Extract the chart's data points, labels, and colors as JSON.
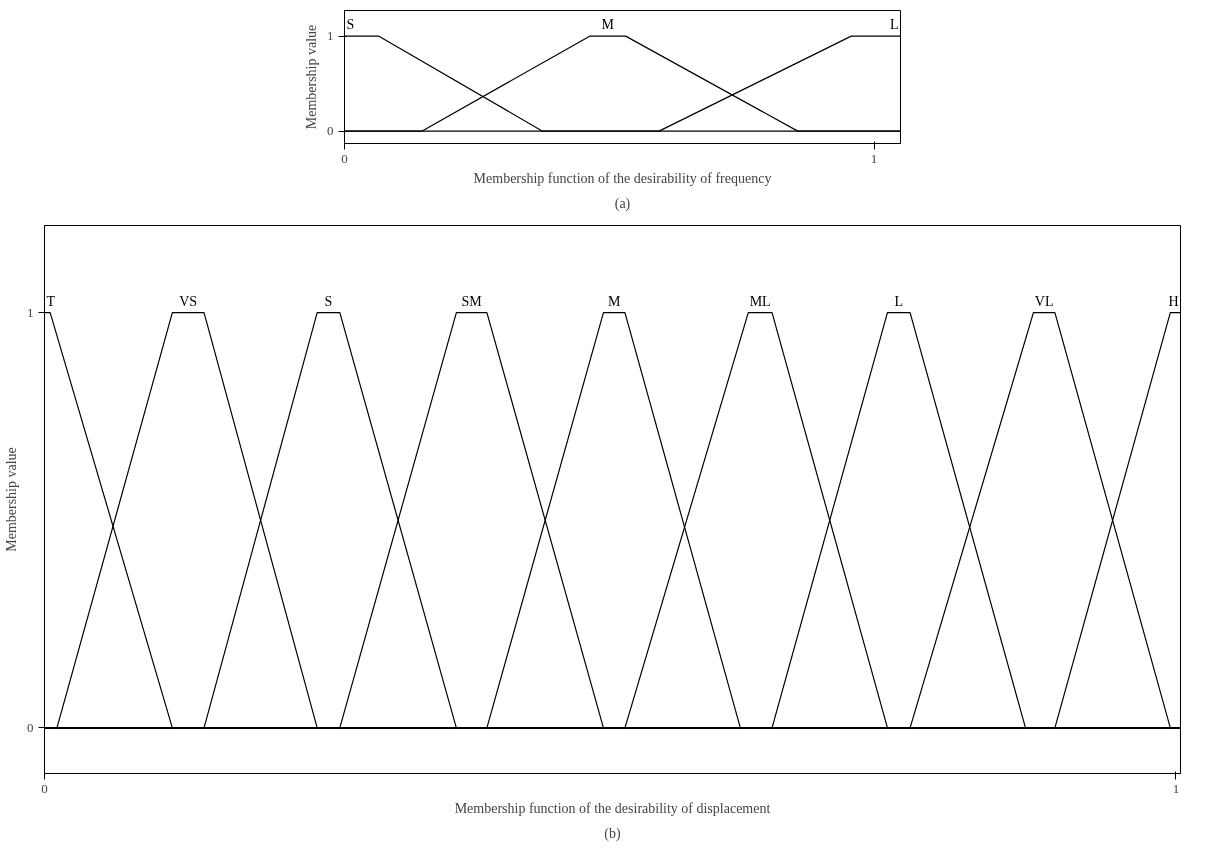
{
  "chart_data": [
    {
      "type": "line",
      "xlabel": "Membership function of the desirability of frequency",
      "ylabel": "Membership value",
      "xlim": [
        0,
        1.05
      ],
      "ylim": [
        -0.13,
        1.27
      ],
      "xticks": [
        0,
        1
      ],
      "yticks": [
        0,
        1
      ],
      "grid": false,
      "legend": false,
      "marker": "none",
      "line_style": "solid",
      "series": [
        {
          "name": "S",
          "color": "#000000",
          "x": [
            0,
            0.065,
            0.374,
            1.05
          ],
          "values": [
            1,
            1,
            0,
            0
          ]
        },
        {
          "name": "M",
          "color": "#000000",
          "x": [
            0,
            0.146,
            0.463,
            0.531,
            0.856,
            1.05
          ],
          "values": [
            0,
            0,
            1,
            1,
            0,
            0
          ]
        },
        {
          "name": "L",
          "color": "#000000",
          "x": [
            0,
            0.594,
            0.957,
            1.05
          ],
          "values": [
            0,
            0,
            1,
            1
          ]
        }
      ],
      "annotations": [
        "(a)"
      ]
    },
    {
      "type": "line",
      "xlabel": "Membership function of the desirability of displacement",
      "ylabel": "Membership value",
      "xlim": [
        0,
        1.004
      ],
      "ylim": [
        -0.11,
        1.21
      ],
      "xticks": [
        0,
        1
      ],
      "yticks": [
        0,
        1
      ],
      "grid": false,
      "legend": false,
      "marker": "none",
      "line_style": "solid",
      "series": [
        {
          "name": "T",
          "color": "#000000",
          "x": [
            0,
            0.005,
            0.113,
            1.004
          ],
          "values": [
            1,
            1,
            0,
            0
          ]
        },
        {
          "name": "VS",
          "color": "#000000",
          "x": [
            0,
            0.011,
            0.113,
            0.141,
            0.241,
            1.004
          ],
          "values": [
            0,
            0,
            1,
            1,
            0,
            0
          ]
        },
        {
          "name": "S",
          "color": "#000000",
          "x": [
            0,
            0.141,
            0.241,
            0.261,
            0.364,
            1.004
          ],
          "values": [
            0,
            0,
            1,
            1,
            0,
            0
          ]
        },
        {
          "name": "SM",
          "color": "#000000",
          "x": [
            0,
            0.261,
            0.364,
            0.391,
            0.494,
            1.004
          ],
          "values": [
            0,
            0,
            1,
            1,
            0,
            0
          ]
        },
        {
          "name": "M",
          "color": "#000000",
          "x": [
            0,
            0.391,
            0.494,
            0.513,
            0.615,
            1.004
          ],
          "values": [
            0,
            0,
            1,
            1,
            0,
            0
          ]
        },
        {
          "name": "ML",
          "color": "#000000",
          "x": [
            0,
            0.513,
            0.622,
            0.643,
            0.745,
            1.004
          ],
          "values": [
            0,
            0,
            1,
            1,
            0,
            0
          ]
        },
        {
          "name": "L",
          "color": "#000000",
          "x": [
            0,
            0.643,
            0.745,
            0.765,
            0.867,
            1.004
          ],
          "values": [
            0,
            0,
            1,
            1,
            0,
            0
          ]
        },
        {
          "name": "VL",
          "color": "#000000",
          "x": [
            0,
            0.765,
            0.874,
            0.893,
            0.995,
            1.004
          ],
          "values": [
            0,
            0,
            1,
            1,
            0,
            0
          ]
        },
        {
          "name": "H",
          "color": "#000000",
          "x": [
            0,
            0.893,
            0.995,
            1.004
          ],
          "values": [
            0,
            0,
            1,
            1
          ]
        }
      ],
      "annotations": [
        "(b)"
      ]
    }
  ]
}
